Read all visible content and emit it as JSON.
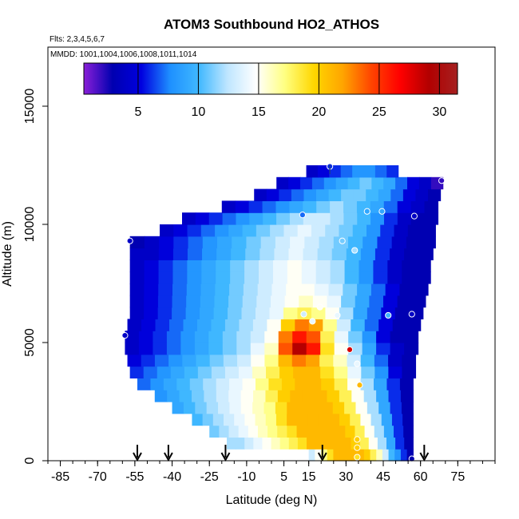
{
  "chart_data": {
    "type": "heatmap",
    "title": "ATOM3 Southbound HO2_ATHOS",
    "subtitle_flights": "Flts: 2,3,4,5,6,7",
    "subtitle_dates": "MMDD: 1001,1004,1006,1008,1011,1014",
    "xlabel": "Latitude (deg N)",
    "ylabel": "Altitude (m)",
    "xlim": [
      -90,
      90
    ],
    "ylim": [
      0,
      17500
    ],
    "x_ticks": [
      -85,
      -70,
      -55,
      -40,
      -25,
      -10,
      5,
      15,
      30,
      45,
      60,
      75
    ],
    "y_ticks": [
      0,
      5000,
      10000,
      15000
    ],
    "colorbar": {
      "min": 0.5,
      "max": 31.5,
      "ticks": [
        5,
        10,
        15,
        20,
        25,
        30
      ],
      "stops": [
        "#8a1fd8",
        "#0000b0",
        "#0000e0",
        "#1e90ff",
        "#40b8ff",
        "#bfe6ff",
        "#ffffff",
        "#ffff80",
        "#ffd700",
        "#ffa500",
        "#ff4500",
        "#ff0000",
        "#b20000",
        "#a52020"
      ]
    },
    "field_rows": [
      {
        "alt": 250,
        "lat_min": 15,
        "lat_max": 57,
        "values": [
          13,
          15,
          17,
          19,
          21,
          21,
          21,
          21,
          21,
          20,
          18,
          16,
          13,
          10,
          8,
          6,
          3
        ]
      },
      {
        "alt": 750,
        "lat_min": -18,
        "lat_max": 57,
        "values": [
          12,
          12,
          13,
          14,
          15,
          16,
          17,
          18,
          19,
          21,
          21,
          21,
          21,
          21,
          20,
          18,
          15,
          12,
          9,
          6,
          3
        ]
      },
      {
        "alt": 1250,
        "lat_min": -25,
        "lat_max": 57,
        "values": [
          11,
          12,
          13,
          14,
          15,
          16,
          17,
          18,
          19,
          21,
          21,
          21,
          21,
          21,
          20,
          18,
          15,
          12,
          9,
          6,
          3
        ]
      },
      {
        "alt": 1750,
        "lat_min": -32,
        "lat_max": 57,
        "values": [
          10,
          11,
          12,
          13,
          14,
          15,
          16,
          17,
          19,
          21,
          21,
          21,
          21,
          21,
          20,
          18,
          15,
          12,
          9,
          6,
          3
        ]
      },
      {
        "alt": 2250,
        "lat_min": -40,
        "lat_max": 57,
        "values": [
          9,
          10,
          11,
          12,
          13,
          14,
          15,
          16,
          17,
          19,
          21,
          21,
          21,
          21,
          20,
          18,
          15,
          12,
          9,
          6,
          3
        ]
      },
      {
        "alt": 2750,
        "lat_min": -47,
        "lat_max": 57,
        "values": [
          8,
          9,
          10,
          11,
          12,
          13,
          14,
          15,
          16,
          18,
          20,
          21,
          21,
          21,
          20,
          18,
          15,
          12,
          9,
          6,
          3
        ]
      },
      {
        "alt": 3250,
        "lat_min": -54,
        "lat_max": 57,
        "values": [
          7,
          8,
          9,
          10,
          11,
          12,
          13,
          14,
          15,
          17,
          19,
          20,
          21,
          21,
          20,
          18,
          15,
          12,
          9,
          6,
          3
        ]
      },
      {
        "alt": 3750,
        "lat_min": -57,
        "lat_max": 58,
        "values": [
          6,
          7,
          8,
          9,
          10,
          11,
          12,
          13,
          14,
          16,
          18,
          20,
          21,
          21,
          19,
          17,
          14,
          11,
          8,
          5,
          3
        ]
      },
      {
        "alt": 4250,
        "lat_min": -58,
        "lat_max": 58,
        "values": [
          5,
          6,
          7,
          8,
          9,
          10,
          11,
          12,
          13,
          15,
          17,
          21,
          23,
          22,
          18,
          16,
          13,
          10,
          7,
          4,
          3
        ]
      },
      {
        "alt": 4750,
        "lat_min": -59,
        "lat_max": 59,
        "values": [
          4,
          5,
          6,
          7,
          8,
          9,
          10,
          11,
          12,
          14,
          16,
          24,
          29,
          26,
          19,
          15,
          12,
          9,
          6,
          4,
          3
        ]
      },
      {
        "alt": 5250,
        "lat_min": -59,
        "lat_max": 59,
        "values": [
          4,
          5,
          6,
          7,
          8,
          9,
          10,
          11,
          12,
          13,
          15,
          23,
          26,
          24,
          18,
          14,
          11,
          8,
          5,
          3,
          3
        ]
      },
      {
        "alt": 5750,
        "lat_min": -58,
        "lat_max": 60,
        "values": [
          4,
          5,
          6,
          7,
          8,
          9,
          10,
          11,
          12,
          13,
          15,
          20,
          23,
          22,
          17,
          13,
          10,
          7,
          5,
          3,
          3
        ]
      },
      {
        "alt": 6250,
        "lat_min": -57,
        "lat_max": 61,
        "values": [
          4,
          5,
          6,
          7,
          8,
          9,
          10,
          11,
          12,
          13,
          14,
          17,
          18,
          17,
          15,
          12,
          9,
          7,
          5,
          3,
          3
        ]
      },
      {
        "alt": 6750,
        "lat_min": -57,
        "lat_max": 62,
        "values": [
          4,
          5,
          6,
          7,
          8,
          9,
          10,
          11,
          12,
          13,
          14,
          15,
          16,
          15,
          14,
          11,
          9,
          7,
          5,
          3,
          3
        ]
      },
      {
        "alt": 7250,
        "lat_min": -57,
        "lat_max": 63,
        "values": [
          4,
          5,
          6,
          7,
          8,
          9,
          10,
          11,
          12,
          13,
          14,
          15,
          15,
          14,
          13,
          11,
          9,
          7,
          5,
          3,
          3
        ]
      },
      {
        "alt": 7750,
        "lat_min": -57,
        "lat_max": 64,
        "values": [
          4,
          5,
          6,
          7,
          8,
          9,
          10,
          11,
          12,
          13,
          14,
          15,
          14,
          13,
          12,
          10,
          8,
          6,
          4,
          3,
          3
        ]
      },
      {
        "alt": 8250,
        "lat_min": -57,
        "lat_max": 64,
        "values": [
          4,
          5,
          6,
          7,
          8,
          9,
          10,
          11,
          12,
          13,
          14,
          15,
          14,
          13,
          12,
          10,
          8,
          6,
          4,
          3,
          3
        ]
      },
      {
        "alt": 8750,
        "lat_min": -57,
        "lat_max": 65,
        "values": [
          4,
          4,
          5,
          6,
          7,
          8,
          9,
          10,
          11,
          12,
          13,
          14,
          13,
          12,
          11,
          10,
          8,
          6,
          4,
          3,
          3
        ]
      },
      {
        "alt": 9250,
        "lat_min": -57,
        "lat_max": 66,
        "values": [
          3,
          4,
          5,
          6,
          7,
          8,
          9,
          10,
          11,
          12,
          13,
          14,
          13,
          12,
          11,
          10,
          8,
          6,
          4,
          3,
          3
        ]
      },
      {
        "alt": 9750,
        "lat_min": -45,
        "lat_max": 66,
        "values": [
          4,
          5,
          6,
          7,
          8,
          9,
          10,
          11,
          12,
          13,
          14,
          13,
          12,
          11,
          10,
          8,
          6,
          4,
          3,
          3
        ]
      },
      {
        "alt": 10250,
        "lat_min": -36,
        "lat_max": 67,
        "values": [
          4,
          5,
          6,
          7,
          8,
          9,
          10,
          11,
          12,
          13,
          13,
          12,
          11,
          10,
          8,
          6,
          4,
          3,
          3
        ]
      },
      {
        "alt": 10750,
        "lat_min": -20,
        "lat_max": 67,
        "values": [
          4,
          5,
          6,
          7,
          8,
          9,
          10,
          11,
          12,
          11,
          10,
          9,
          7,
          5,
          4,
          3
        ]
      },
      {
        "alt": 11250,
        "lat_min": -7,
        "lat_max": 68,
        "values": [
          4,
          5,
          6,
          7,
          8,
          9,
          10,
          11,
          11,
          10,
          9,
          7,
          5,
          4,
          3
        ]
      },
      {
        "alt": 11750,
        "lat_min": 2,
        "lat_max": 69,
        "values": [
          4,
          5,
          6,
          7,
          8,
          9,
          10,
          11,
          10,
          9,
          7,
          5,
          4,
          2
        ]
      },
      {
        "alt": 12250,
        "lat_min": 14,
        "lat_max": 51,
        "values": [
          4,
          5,
          6,
          7,
          8,
          8,
          7,
          6
        ]
      }
    ],
    "points": [
      {
        "x": 23.5,
        "y": 12450,
        "v": 6
      },
      {
        "x": 68.5,
        "y": 11850,
        "v": 2
      },
      {
        "x": 38.5,
        "y": 10550,
        "v": 9
      },
      {
        "x": 44.5,
        "y": 10550,
        "v": 9
      },
      {
        "x": 12.5,
        "y": 10400,
        "v": 7
      },
      {
        "x": 57.5,
        "y": 10350,
        "v": 4
      },
      {
        "x": -57,
        "y": 9300,
        "v": 4
      },
      {
        "x": 28.5,
        "y": 9300,
        "v": 11
      },
      {
        "x": 33.5,
        "y": 8900,
        "v": 12
      },
      {
        "x": 19.5,
        "y": 6500,
        "v": 15
      },
      {
        "x": 13,
        "y": 6200,
        "v": 13
      },
      {
        "x": 26.5,
        "y": 6150,
        "v": 14
      },
      {
        "x": 47,
        "y": 6150,
        "v": 10
      },
      {
        "x": 56.5,
        "y": 6200,
        "v": 4
      },
      {
        "x": 16.5,
        "y": 5900,
        "v": 14
      },
      {
        "x": -59,
        "y": 5300,
        "v": 4
      },
      {
        "x": 31.5,
        "y": 4700,
        "v": 28
      },
      {
        "x": 34.5,
        "y": 4100,
        "v": 14
      },
      {
        "x": 35.5,
        "y": 3200,
        "v": 21
      },
      {
        "x": 34.5,
        "y": 900,
        "v": 20
      },
      {
        "x": 34.5,
        "y": 550,
        "v": 20
      },
      {
        "x": 34.5,
        "y": 150,
        "v": 19
      },
      {
        "x": 56.5,
        "y": 80,
        "v": 3
      }
    ],
    "flight_arrows_lat": [
      -54,
      -41.5,
      -18.5,
      20.5,
      61.5
    ],
    "top_marker_lat": 23.5
  }
}
